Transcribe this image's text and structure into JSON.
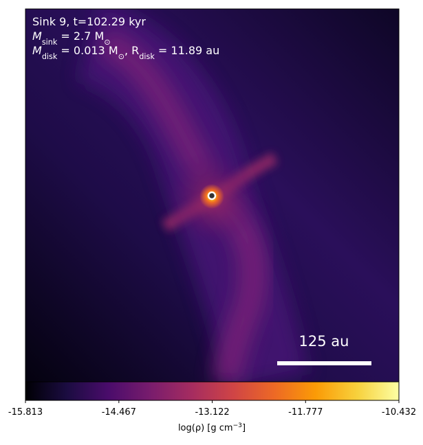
{
  "chart_data": {
    "type": "image",
    "annotation_lines": [
      [
        {
          "text": "Sink 9, t=102.29 kyr"
        }
      ],
      [
        {
          "text": "M"
        },
        {
          "sub": "sink"
        },
        {
          "text": " = 2.7 M"
        },
        {
          "sub": "⊙"
        }
      ],
      [
        {
          "text": "M"
        },
        {
          "sub": "disk"
        },
        {
          "text": " = 0.013 M"
        },
        {
          "sub": "⊙"
        },
        {
          "text": ", R"
        },
        {
          "sub": "disk"
        },
        {
          "text": " = 11.89 au"
        }
      ]
    ],
    "scale_bar_label": "125 au",
    "colorbar": {
      "label": [
        {
          "text": "log(ρ) [g cm"
        },
        {
          "sup": "−3"
        },
        {
          "text": "]"
        }
      ],
      "clim": [
        -15.813,
        -10.432
      ],
      "ticks": [
        -15.813,
        -14.467,
        -13.122,
        -11.777,
        -10.432
      ],
      "colormap": [
        "#000004",
        "#1b0c41",
        "#4a0c6b",
        "#781c6d",
        "#a52c60",
        "#cf4446",
        "#ed6925",
        "#fb9b06",
        "#f7d13d",
        "#fcffa4"
      ]
    }
  }
}
